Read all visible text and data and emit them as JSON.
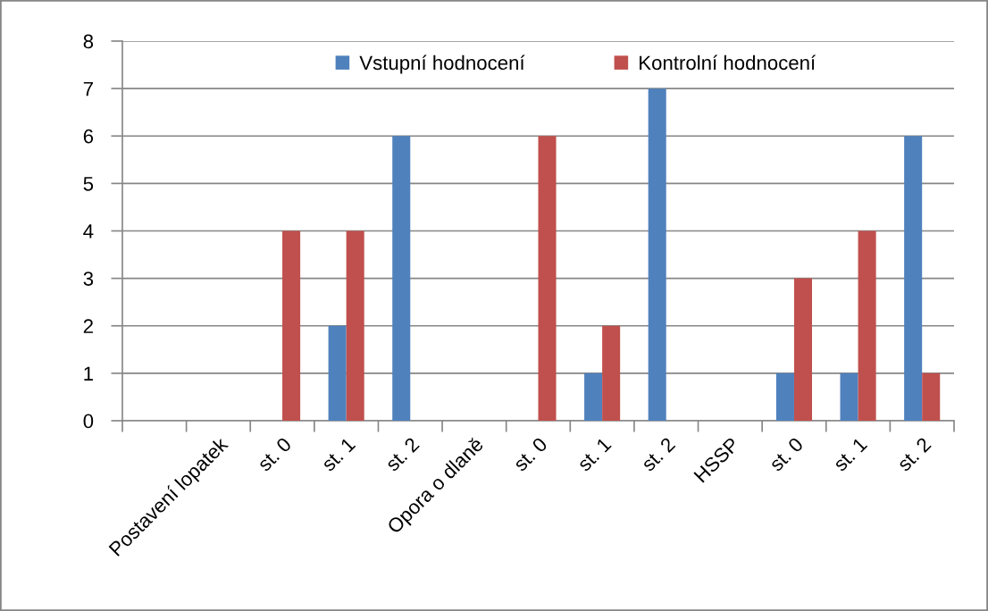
{
  "chart_data": {
    "type": "bar",
    "categories": [
      null,
      "Postavení lopatek",
      "st. 0",
      "st. 1",
      "st. 2",
      "Opora o dlaně",
      "st. 0",
      "st. 1",
      "st. 2",
      "HSSP",
      "st. 0",
      "st. 1",
      "st. 2"
    ],
    "series": [
      {
        "name": "Vstupní hodnocení",
        "color": "#4f81bd",
        "values": [
          null,
          null,
          null,
          2,
          6,
          null,
          null,
          1,
          7,
          null,
          1,
          1,
          6
        ]
      },
      {
        "name": "Kontrolní hodnocení",
        "color": "#c0504d",
        "values": [
          null,
          null,
          4,
          4,
          null,
          null,
          6,
          2,
          null,
          null,
          3,
          4,
          1
        ]
      }
    ],
    "ylim": [
      0,
      8
    ],
    "yticks": [
      0,
      1,
      2,
      3,
      4,
      5,
      6,
      7,
      8
    ],
    "grid": "y",
    "legend": "top"
  }
}
